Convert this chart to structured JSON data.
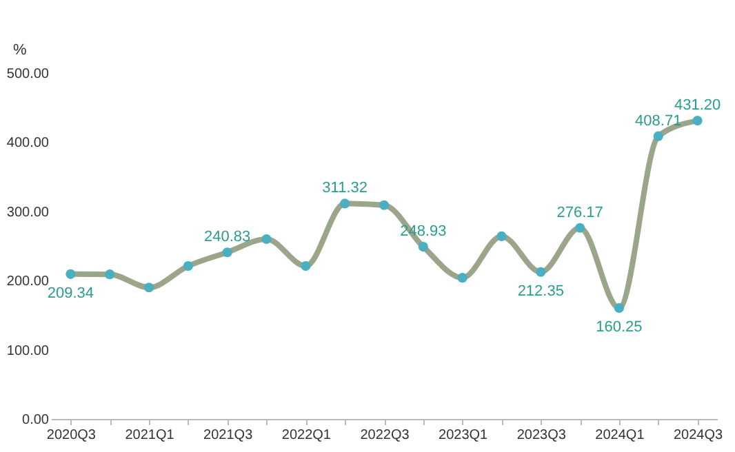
{
  "chart_data": {
    "type": "line",
    "ylabel": "%",
    "categories": [
      "2020Q3",
      null,
      "2021Q1",
      null,
      "2021Q3",
      null,
      "2022Q1",
      null,
      "2022Q3",
      null,
      "2023Q1",
      null,
      "2023Q3",
      null,
      "2024Q1",
      null,
      "2024Q3"
    ],
    "series": [
      {
        "color": "#9aa58a",
        "values": [
          209.34,
          209,
          190,
          221,
          240.83,
          260,
          221,
          311.32,
          309,
          248.93,
          204,
          264,
          212.35,
          276.17,
          160.25,
          408.71,
          431.2
        ],
        "value_labels": [
          "209.34",
          null,
          null,
          null,
          "240.83",
          null,
          null,
          "311.32",
          null,
          "248.93",
          null,
          null,
          "212.35",
          "276.17",
          "160.25",
          "408.71",
          "431.20"
        ]
      }
    ],
    "ylim": [
      0,
      500
    ],
    "yticks": [
      {
        "value": 0,
        "label": "0.00"
      },
      {
        "value": 100,
        "label": "100.00"
      },
      {
        "value": 200,
        "label": "200.00"
      },
      {
        "value": 300,
        "label": "300.00"
      },
      {
        "value": 400,
        "label": "400.00"
      },
      {
        "value": 500,
        "label": "500.00"
      }
    ],
    "grid": false,
    "marker": "circle",
    "line_style": "solid"
  }
}
